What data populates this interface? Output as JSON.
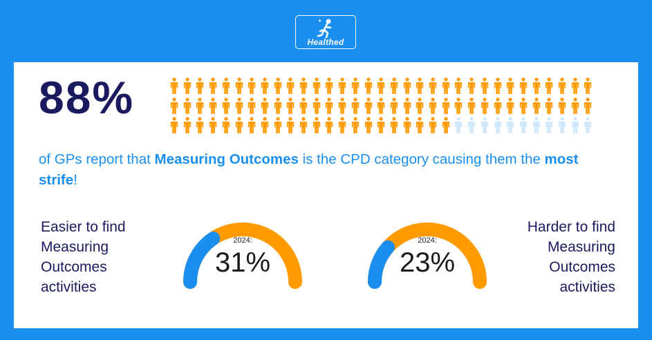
{
  "brand": {
    "logo_text": "Healthed",
    "logo_icon": "running-figure-icon"
  },
  "colors": {
    "background": "#1a8ff0",
    "navy": "#1c1a5e",
    "orange": "#ff9a00",
    "blue": "#1a8ff0",
    "light_blue": "#cfe6f9"
  },
  "headline": {
    "percent": "88%",
    "percent_value": 88
  },
  "pictogram": {
    "icon": "person-icon",
    "total": 99,
    "filled": 88,
    "columns": 33,
    "rows": 3
  },
  "statement": {
    "part1": "of GPs report that ",
    "bold1": "Measuring Outcomes",
    "part2": " is the CPD category causing them the ",
    "bold2": "most strife",
    "part3": "!"
  },
  "left": {
    "label_lines": [
      "Easier to find",
      "Measuring",
      "Outcomes",
      "activities"
    ],
    "gauge": {
      "year_label": "2024:",
      "value_label": "31%",
      "value": 31
    }
  },
  "right": {
    "label_lines": [
      "Harder to find",
      "Measuring",
      "Outcomes",
      "activities"
    ],
    "gauge": {
      "year_label": "2024:",
      "value_label": "23%",
      "value": 23
    }
  }
}
